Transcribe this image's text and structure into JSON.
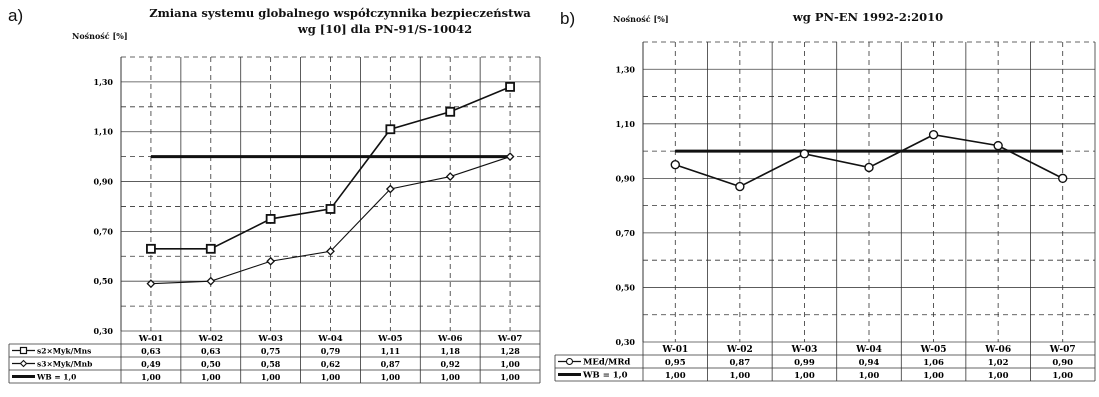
{
  "chart_data": [
    {
      "type": "line",
      "panel_letter": "a)",
      "title": "Zmiana systemu globalnego współczynnika bezpieczeństwa",
      "subtitle": "wg [10] dla PN-91/S-10042",
      "ylabel": "Nośność [%]",
      "ylim": [
        0.3,
        1.4
      ],
      "yticks": [
        "0,30",
        "0,50",
        "0,70",
        "0,90",
        "1,10",
        "1,30"
      ],
      "ytick_values": [
        0.3,
        0.5,
        0.7,
        0.9,
        1.1,
        1.3
      ],
      "categories": [
        "W-01",
        "W-02",
        "W-03",
        "W-04",
        "W-05",
        "W-06",
        "W-07"
      ],
      "grid": true,
      "series": [
        {
          "name": "s2×Myk/Mns",
          "marker": "square",
          "values": [
            0.63,
            0.63,
            0.75,
            0.79,
            1.11,
            1.18,
            1.28
          ],
          "labels": [
            "0,63",
            "0,63",
            "0,75",
            "0,79",
            "1,11",
            "1,18",
            "1,28"
          ]
        },
        {
          "name": "s3×Myk/Mnb",
          "marker": "diamond",
          "values": [
            0.49,
            0.5,
            0.58,
            0.62,
            0.87,
            0.92,
            1.0
          ],
          "labels": [
            "0,49",
            "0,50",
            "0,58",
            "0,62",
            "0,87",
            "0,92",
            "1,00"
          ]
        },
        {
          "name": "WB = 1,0",
          "marker": "none",
          "values": [
            1.0,
            1.0,
            1.0,
            1.0,
            1.0,
            1.0,
            1.0
          ],
          "labels": [
            "1,00",
            "1,00",
            "1,00",
            "1,00",
            "1,00",
            "1,00",
            "1,00"
          ]
        }
      ]
    },
    {
      "type": "line",
      "panel_letter": "b)",
      "title": "wg PN-EN 1992-2:2010",
      "ylabel": "Nośność [%]",
      "ylim": [
        0.3,
        1.4
      ],
      "yticks": [
        "0,30",
        "0,50",
        "0,70",
        "0,90",
        "1,10",
        "1,30"
      ],
      "ytick_values": [
        0.3,
        0.5,
        0.7,
        0.9,
        1.1,
        1.3
      ],
      "categories": [
        "W-01",
        "W-02",
        "W-03",
        "W-04",
        "W-05",
        "W-06",
        "W-07"
      ],
      "grid": true,
      "series": [
        {
          "name": "MEd/MRd",
          "marker": "circle",
          "values": [
            0.95,
            0.87,
            0.99,
            0.94,
            1.06,
            1.02,
            0.9
          ],
          "labels": [
            "0,95",
            "0,87",
            "0,99",
            "0,94",
            "1,06",
            "1,02",
            "0,90"
          ]
        },
        {
          "name": "WB = 1,0",
          "marker": "none",
          "values": [
            1.0,
            1.0,
            1.0,
            1.0,
            1.0,
            1.0,
            1.0
          ],
          "labels": [
            "1,00",
            "1,00",
            "1,00",
            "1,00",
            "1,00",
            "1,00",
            "1,00"
          ]
        }
      ]
    }
  ]
}
